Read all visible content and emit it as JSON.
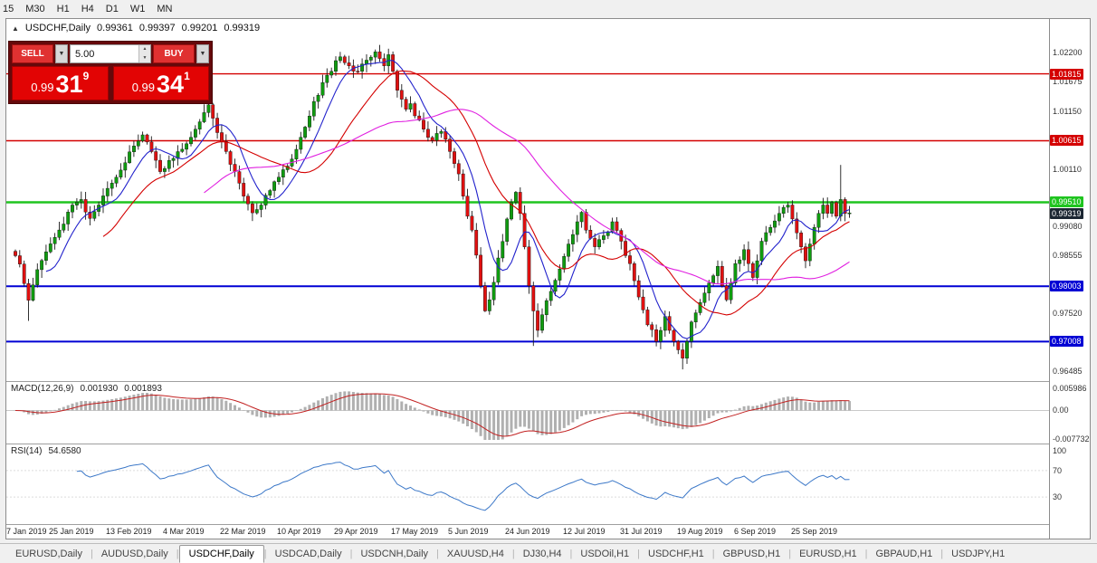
{
  "toolbar": {
    "timeframes": [
      "15",
      "M30",
      "H1",
      "H4",
      "D1",
      "W1",
      "MN"
    ]
  },
  "window": {
    "title": "USDCHF,Daily",
    "ohlc": {
      "open": "0.99361",
      "high": "0.99397",
      "low": "0.99201",
      "close": "0.99319"
    }
  },
  "trade_panel": {
    "sell_label": "SELL",
    "buy_label": "BUY",
    "volume": "5.00",
    "sell_price": {
      "base": "0.99",
      "big": "31",
      "sup": "9"
    },
    "buy_price": {
      "base": "0.99",
      "big": "34",
      "sup": "1"
    }
  },
  "chart_data": {
    "type": "candlestick",
    "title": "USDCHF,Daily",
    "x_tick_labels": [
      "7 Jan 2019",
      "25 Jan 2019",
      "13 Feb 2019",
      "4 Mar 2019",
      "22 Mar 2019",
      "10 Apr 2019",
      "29 Apr 2019",
      "17 May 2019",
      "5 Jun 2019",
      "24 Jun 2019",
      "12 Jul 2019",
      "31 Jul 2019",
      "19 Aug 2019",
      "6 Sep 2019",
      "25 Sep 2019"
    ],
    "x_ticks_every_bars": 13,
    "bar_count": 191,
    "price_range": [
      0.963,
      1.028
    ],
    "y_axis_labels": [
      "1.02200",
      "1.01675",
      "1.01150",
      "1.00110",
      "0.99080",
      "0.98555",
      "0.97520",
      "0.96485"
    ],
    "horizontal_lines": [
      {
        "price": 1.01815,
        "label": "1.01815",
        "color": "#d40000",
        "thickness": 1.4
      },
      {
        "price": 1.00615,
        "label": "1.00615",
        "color": "#d40000",
        "thickness": 1.4
      },
      {
        "price": 0.9951,
        "label": "0.99510",
        "color": "#1fc41f",
        "thickness": 2.4
      },
      {
        "price": 0.98003,
        "label": "0.98003",
        "color": "#0000d4",
        "thickness": 2
      },
      {
        "price": 0.97008,
        "label": "0.97008",
        "color": "#0000d4",
        "thickness": 2
      }
    ],
    "current_price": {
      "value": 0.99319,
      "label": "0.99319",
      "badge_color": "#1c2733"
    },
    "up_color": "#0f9b0f",
    "down_color": "#e01010",
    "wick_color": "#1a1a1a",
    "close_anchors": [
      [
        0,
        0.9855
      ],
      [
        1,
        0.984
      ],
      [
        2,
        0.9805
      ],
      [
        3,
        0.9775
      ],
      [
        5,
        0.983
      ],
      [
        7,
        0.9862
      ],
      [
        9,
        0.9888
      ],
      [
        11,
        0.9912
      ],
      [
        13,
        0.9946
      ],
      [
        15,
        0.9956
      ],
      [
        17,
        0.9922
      ],
      [
        19,
        0.9946
      ],
      [
        21,
        0.9976
      ],
      [
        23,
        0.9996
      ],
      [
        25,
        1.0022
      ],
      [
        27,
        1.0052
      ],
      [
        29,
        1.0072
      ],
      [
        31,
        1.0042
      ],
      [
        33,
        1.0006
      ],
      [
        35,
        1.0026
      ],
      [
        37,
        1.0042
      ],
      [
        39,
        1.0056
      ],
      [
        41,
        1.0082
      ],
      [
        43,
        1.0112
      ],
      [
        44,
        1.0126
      ],
      [
        45,
        1.0102
      ],
      [
        46,
        1.0076
      ],
      [
        48,
        1.0042
      ],
      [
        50,
        1.0006
      ],
      [
        52,
        0.9962
      ],
      [
        54,
        0.9932
      ],
      [
        56,
        0.9946
      ],
      [
        58,
        0.9972
      ],
      [
        60,
        0.9996
      ],
      [
        62,
        1.0016
      ],
      [
        64,
        1.0046
      ],
      [
        66,
        1.0086
      ],
      [
        68,
        1.0132
      ],
      [
        70,
        1.0166
      ],
      [
        72,
        1.0186
      ],
      [
        74,
        1.0212
      ],
      [
        76,
        1.0196
      ],
      [
        78,
        1.0186
      ],
      [
        80,
        1.0206
      ],
      [
        82,
        1.0221
      ],
      [
        84,
        1.0196
      ],
      [
        85,
        1.0216
      ],
      [
        86,
        1.0186
      ],
      [
        87,
        1.0152
      ],
      [
        89,
        1.0118
      ],
      [
        90,
        1.0128
      ],
      [
        91,
        1.0106
      ],
      [
        93,
        1.0082
      ],
      [
        95,
        1.0062
      ],
      [
        97,
        1.0078
      ],
      [
        99,
        1.0042
      ],
      [
        101,
        1.0002
      ],
      [
        102,
        0.9962
      ],
      [
        103,
        0.9926
      ],
      [
        104,
        0.9901
      ],
      [
        105,
        0.9856
      ],
      [
        106,
        0.9801
      ],
      [
        107,
        0.9756
      ],
      [
        108,
        0.9776
      ],
      [
        110,
        0.9851
      ],
      [
        112,
        0.9921
      ],
      [
        113,
        0.9951
      ],
      [
        114,
        0.9969
      ],
      [
        115,
        0.9931
      ],
      [
        116,
        0.9871
      ],
      [
        117,
        0.9801
      ],
      [
        118,
        0.9756
      ],
      [
        119,
        0.9721
      ],
      [
        120,
        0.9749
      ],
      [
        122,
        0.9791
      ],
      [
        124,
        0.9831
      ],
      [
        126,
        0.9876
      ],
      [
        128,
        0.9916
      ],
      [
        129,
        0.9933
      ],
      [
        130,
        0.9901
      ],
      [
        132,
        0.9871
      ],
      [
        134,
        0.9891
      ],
      [
        136,
        0.9916
      ],
      [
        138,
        0.9881
      ],
      [
        140,
        0.9841
      ],
      [
        142,
        0.9781
      ],
      [
        144,
        0.9731
      ],
      [
        146,
        0.9701
      ],
      [
        147,
        0.9721
      ],
      [
        148,
        0.9746
      ],
      [
        149,
        0.9721
      ],
      [
        150,
        0.9701
      ],
      [
        151,
        0.9686
      ],
      [
        152,
        0.9671
      ],
      [
        153,
        0.9701
      ],
      [
        154,
        0.9736
      ],
      [
        156,
        0.9771
      ],
      [
        158,
        0.9806
      ],
      [
        160,
        0.9836
      ],
      [
        161,
        0.9801
      ],
      [
        162,
        0.9776
      ],
      [
        163,
        0.9806
      ],
      [
        164,
        0.9841
      ],
      [
        166,
        0.9866
      ],
      [
        167,
        0.9841
      ],
      [
        168,
        0.9816
      ],
      [
        169,
        0.9846
      ],
      [
        170,
        0.9881
      ],
      [
        172,
        0.9906
      ],
      [
        174,
        0.9931
      ],
      [
        176,
        0.9946
      ],
      [
        177,
        0.9921
      ],
      [
        178,
        0.9896
      ],
      [
        179,
        0.9871
      ],
      [
        180,
        0.9846
      ],
      [
        181,
        0.9876
      ],
      [
        182,
        0.9906
      ],
      [
        183,
        0.9931
      ],
      [
        184,
        0.9946
      ],
      [
        185,
        0.9931
      ],
      [
        186,
        0.9951
      ],
      [
        187,
        0.9926
      ],
      [
        188,
        0.9956
      ],
      [
        189,
        0.9931
      ],
      [
        190,
        0.99319
      ]
    ],
    "wick_events": [
      [
        3,
        "low",
        0.9738
      ],
      [
        44,
        "high",
        1.0139
      ],
      [
        85,
        "high",
        1.0226
      ],
      [
        118,
        "low",
        0.9693
      ],
      [
        152,
        "low",
        0.9651
      ],
      [
        188,
        "high",
        1.0018
      ]
    ],
    "moving_averages": [
      {
        "period": 8,
        "color": "#2222cc"
      },
      {
        "period": 21,
        "color": "#d40000"
      },
      {
        "period": 44,
        "color": "#e020e0"
      }
    ],
    "indicators": {
      "macd": {
        "label": "MACD(12,26,9)",
        "value_main": "0.001930",
        "value_signal": "0.001893",
        "params": [
          12,
          26,
          9
        ],
        "axis_labels": [
          "0.005986",
          "0.00",
          "-0.007732"
        ],
        "histogram_color": "#b0b0b0",
        "signal_color": "#c22222",
        "range": [
          -0.008,
          0.007
        ]
      },
      "rsi": {
        "label": "RSI(14)",
        "value": "54.6580",
        "period": 14,
        "axis_labels": [
          "100",
          "70",
          "30"
        ],
        "levels": [
          70,
          30
        ],
        "line_color": "#3c78c8"
      }
    }
  },
  "tabs": [
    {
      "label": "EURUSD,Daily",
      "active": false
    },
    {
      "label": "AUDUSD,Daily",
      "active": false
    },
    {
      "label": "USDCHF,Daily",
      "active": true
    },
    {
      "label": "USDCAD,Daily",
      "active": false
    },
    {
      "label": "USDCNH,Daily",
      "active": false
    },
    {
      "label": "XAUUSD,H4",
      "active": false
    },
    {
      "label": "DJ30,H4",
      "active": false
    },
    {
      "label": "USDOil,H1",
      "active": false
    },
    {
      "label": "USDCHF,H1",
      "active": false
    },
    {
      "label": "GBPUSD,H1",
      "active": false
    },
    {
      "label": "EURUSD,H1",
      "active": false
    },
    {
      "label": "GBPAUD,H1",
      "active": false
    },
    {
      "label": "USDJPY,H1",
      "active": false
    }
  ]
}
